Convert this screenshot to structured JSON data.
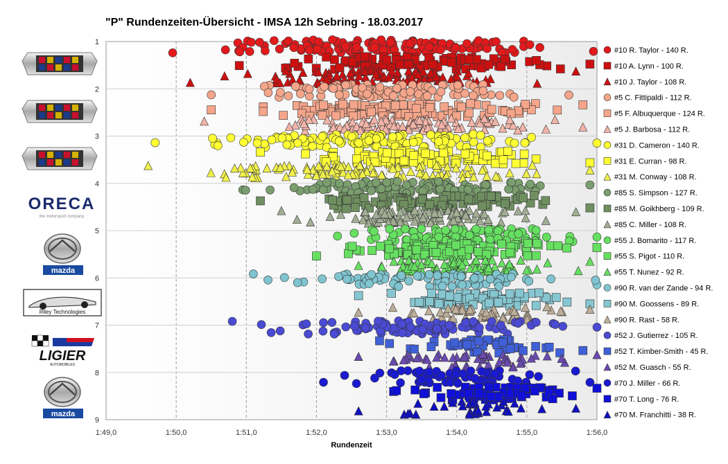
{
  "chart_data": {
    "type": "scatter",
    "title": "\"P\" Rundenzeiten-Übersicht  - IMSA  12h  Sebring  - 18.03.2017",
    "xlabel": "Rundenzeit",
    "ylabel": "",
    "x_ticks": [
      "1:49,0",
      "1:50,0",
      "1:51,0",
      "1:52,0",
      "1:53,0",
      "1:54,0",
      "1:55,0",
      "1:56,0"
    ],
    "xlim_seconds": [
      109,
      116
    ],
    "y_ticks": [
      "1",
      "2",
      "3",
      "4",
      "5",
      "6",
      "7",
      "8",
      "9"
    ],
    "ylim": [
      1,
      9
    ],
    "grid": "dashed vertical",
    "legend_position": "right",
    "series": [
      {
        "name": "#10 R. Taylor - 140 R.",
        "marker": "circle",
        "color": "#e31a1c",
        "row": 1.1,
        "x_range": [
          109.95,
          115.95
        ],
        "count": 140
      },
      {
        "name": "#10 A. Lynn - 100 R.",
        "marker": "square",
        "color": "#cc1010",
        "row": 1.45,
        "x_range": [
          110.9,
          115.9
        ],
        "count": 100
      },
      {
        "name": "#10 J. Taylor - 108 R.",
        "marker": "triangle",
        "color": "#cc1010",
        "row": 1.75,
        "x_range": [
          110.2,
          115.7
        ],
        "count": 108
      },
      {
        "name": "#5 C. Fittipaldi - 112 R.",
        "marker": "circle",
        "color": "#f4a58a",
        "row": 2.05,
        "x_range": [
          110.5,
          115.6
        ],
        "count": 112
      },
      {
        "name": "#5 F. Albuquerque - 124 R.",
        "marker": "square",
        "color": "#f4a58a",
        "row": 2.45,
        "x_range": [
          110.5,
          115.8
        ],
        "count": 124
      },
      {
        "name": "#5 J. Barbosa - 112 R.",
        "marker": "triangle",
        "color": "#f2b4a8",
        "row": 2.75,
        "x_range": [
          110.4,
          115.8
        ],
        "count": 112
      },
      {
        "name": "#31 D. Cameron - 140 R.",
        "marker": "circle",
        "color": "#ffff33",
        "row": 3.1,
        "x_range": [
          109.7,
          116.0
        ],
        "count": 140
      },
      {
        "name": "#31 E. Curran - 98 R.",
        "marker": "square",
        "color": "#ffff33",
        "row": 3.45,
        "x_range": [
          111.2,
          115.9
        ],
        "count": 98
      },
      {
        "name": "#31 M. Conway - 108 R.",
        "marker": "triangle",
        "color": "#f0f04a",
        "row": 3.75,
        "x_range": [
          109.6,
          115.9
        ],
        "count": 108
      },
      {
        "name": "#85 S. Simpson - 127 R.",
        "marker": "circle",
        "color": "#7a9e6e",
        "row": 4.1,
        "x_range": [
          110.95,
          115.9
        ],
        "count": 127
      },
      {
        "name": "#85 M. Goikhberg - 109 R.",
        "marker": "square",
        "color": "#6f8f60",
        "row": 4.4,
        "x_range": [
          111.2,
          115.9
        ],
        "count": 109
      },
      {
        "name": "#85 C. Miller - 108 R.",
        "marker": "triangle",
        "color": "#a2ae94",
        "row": 4.7,
        "x_range": [
          111.5,
          115.7
        ],
        "count": 108
      },
      {
        "name": "#55 J. Bomarito - 117 R.",
        "marker": "circle",
        "color": "#66e060",
        "row": 5.1,
        "x_range": [
          112.3,
          116.0
        ],
        "count": 117
      },
      {
        "name": "#55 S. Pigot - 110 R.",
        "marker": "square",
        "color": "#66e060",
        "row": 5.4,
        "x_range": [
          112.0,
          116.0
        ],
        "count": 110
      },
      {
        "name": "#55 T. Nunez - 92 R.",
        "marker": "triangle",
        "color": "#66e060",
        "row": 5.75,
        "x_range": [
          112.6,
          115.9
        ],
        "count": 92
      },
      {
        "name": "#90 R. van der Zande - 94 R.",
        "marker": "circle",
        "color": "#7fc4cf",
        "row": 6.05,
        "x_range": [
          111.1,
          116.0
        ],
        "count": 94
      },
      {
        "name": "#90 M. Goossens - 89 R.",
        "marker": "square",
        "color": "#86c6d0",
        "row": 6.45,
        "x_range": [
          112.6,
          115.9
        ],
        "count": 89
      },
      {
        "name": "#90 R. Rast - 58 R.",
        "marker": "triangle",
        "color": "#bdae99",
        "row": 6.75,
        "x_range": [
          112.6,
          115.9
        ],
        "count": 58
      },
      {
        "name": "#52 J. Gutierrez - 105 R.",
        "marker": "circle",
        "color": "#4a4ad4",
        "row": 7.05,
        "x_range": [
          110.8,
          116.0
        ],
        "count": 105
      },
      {
        "name": "#52 T. Kimber-Smith - 45 R.",
        "marker": "square",
        "color": "#4060d8",
        "row": 7.45,
        "x_range": [
          112.9,
          115.8
        ],
        "count": 45
      },
      {
        "name": "#52 M. Guasch - 55 R.",
        "marker": "triangle",
        "color": "#6a4ab0",
        "row": 7.75,
        "x_range": [
          112.6,
          116.0
        ],
        "count": 55
      },
      {
        "name": "#70 J. Miller - 66 R.",
        "marker": "circle",
        "color": "#1a1ad0",
        "row": 8.1,
        "x_range": [
          112.1,
          115.9
        ],
        "count": 66
      },
      {
        "name": "#70 T. Long - 76 R.",
        "marker": "square",
        "color": "#1010d8",
        "row": 8.45,
        "x_range": [
          113.1,
          116.0
        ],
        "count": 76
      },
      {
        "name": "#70 M. Franchitti - 38 R.",
        "marker": "triangle",
        "color": "#1010c0",
        "row": 8.75,
        "x_range": [
          112.6,
          115.7
        ],
        "count": 38
      }
    ]
  },
  "logos": [
    {
      "icon": "cadillac-logo",
      "text": ""
    },
    {
      "icon": "cadillac-logo",
      "text": ""
    },
    {
      "icon": "cadillac-logo",
      "text": ""
    },
    {
      "icon": "oreca-logo",
      "text": "ORECA",
      "subtext": "the motorsport company"
    },
    {
      "icon": "mazda-logo",
      "text": "mazda"
    },
    {
      "icon": "riley-logo",
      "text": "Riley Technologies"
    },
    {
      "icon": "ligier-logo",
      "text": "LIGIER",
      "subtext": "AUTOMOBILES"
    },
    {
      "icon": "mazda-logo",
      "text": "mazda"
    }
  ]
}
